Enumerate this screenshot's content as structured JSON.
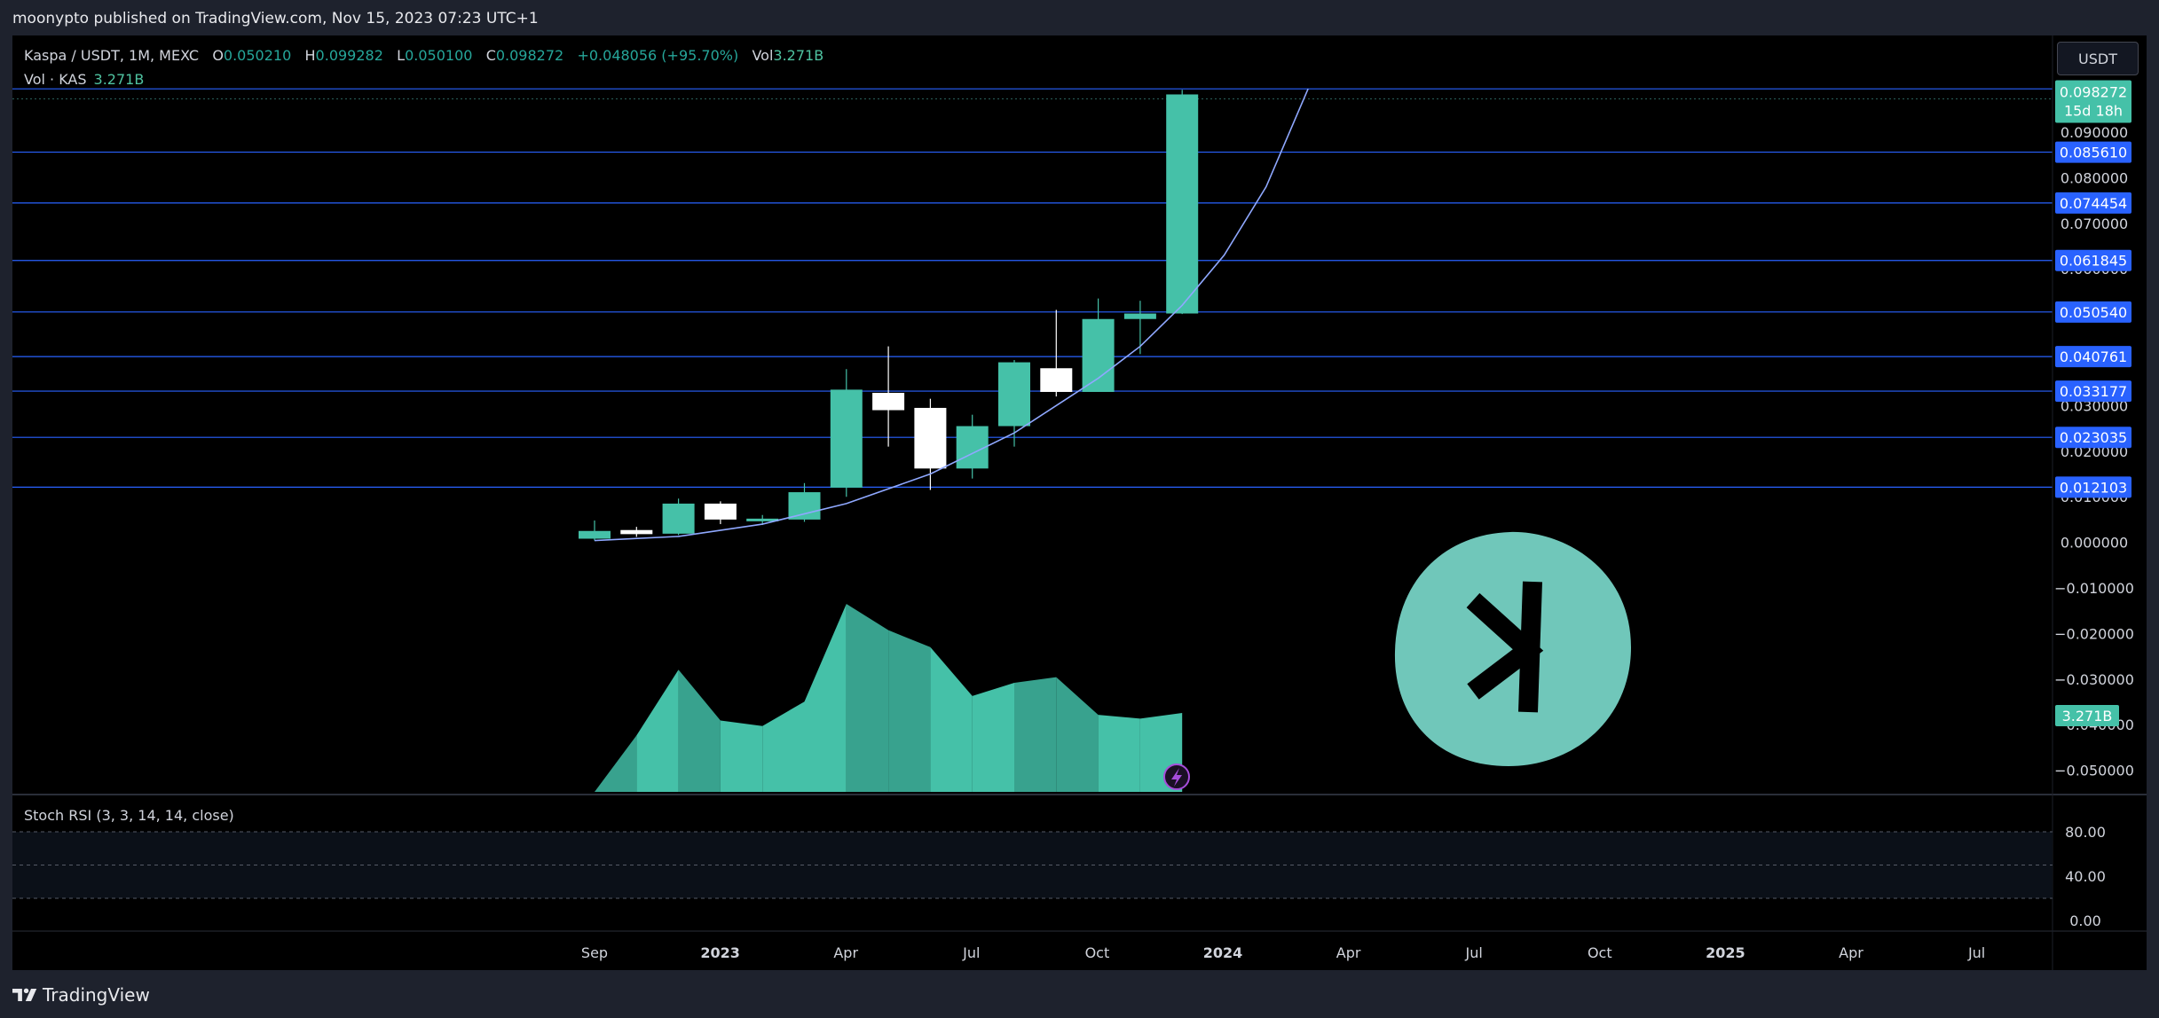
{
  "header": {
    "published_by": "moonypto published on TradingView.com, Nov 15, 2023 07:23 UTC+1"
  },
  "legend": {
    "symbol": "Kaspa / USDT, 1M, MEXC",
    "o_label": "O",
    "o_value": "0.050210",
    "h_label": "H",
    "h_value": "0.099282",
    "l_label": "L",
    "l_value": "0.050100",
    "c_label": "C",
    "c_value": "0.098272",
    "change": "+0.048056 (+95.70%)",
    "vol_label": "Vol",
    "vol_value": "3.271B"
  },
  "vol_legend": {
    "label": "Vol · KAS",
    "value": "3.271B"
  },
  "stoch_legend": {
    "label": "Stoch RSI (3, 3, 14, 14, close)"
  },
  "currency_button": {
    "label": "USDT"
  },
  "footer": {
    "brand": "TradingView"
  },
  "colors": {
    "up": "#45c1a8",
    "down": "#ffffff",
    "level": "#2962ff",
    "badge": "#2962ff",
    "price_badge": "#45c1a8",
    "volume": "#45c1a8",
    "volume_dark": "#38a28e",
    "logo": "#70c7ba"
  },
  "icons": {
    "logo": "kaspa-logo",
    "flash": "lightning-icon",
    "brand": "tradingview-logo-icon"
  },
  "chart_data": {
    "type": "candlestick",
    "title": "Kaspa / USDT, 1M, MEXC",
    "y_axis": {
      "ticks": [
        "0.090000",
        "0.080000",
        "0.070000",
        "0.060000",
        "0.050000",
        "0.040000",
        "0.030000",
        "0.020000",
        "0.010000",
        "0.000000",
        "−0.010000",
        "−0.020000",
        "−0.030000",
        "−0.040000",
        "−0.050000"
      ],
      "range": [
        -0.05,
        0.1
      ]
    },
    "x_axis": {
      "ticks": [
        "Sep",
        "2023",
        "Apr",
        "Jul",
        "Oct",
        "2024",
        "Apr",
        "Jul",
        "Oct",
        "2025",
        "Apr",
        "Jul"
      ]
    },
    "candles": [
      {
        "month": "2022-09",
        "o": 0.0008,
        "h": 0.0048,
        "l": 0.0004,
        "c": 0.0025
      },
      {
        "month": "2022-10",
        "o": 0.0027,
        "h": 0.0034,
        "l": 0.0012,
        "c": 0.0018
      },
      {
        "month": "2022-11",
        "o": 0.0019,
        "h": 0.0096,
        "l": 0.0016,
        "c": 0.0085
      },
      {
        "month": "2022-12",
        "o": 0.0085,
        "h": 0.009,
        "l": 0.004,
        "c": 0.005
      },
      {
        "month": "2023-01",
        "o": 0.005,
        "h": 0.006,
        "l": 0.0038,
        "c": 0.0052
      },
      {
        "month": "2023-02",
        "o": 0.005,
        "h": 0.013,
        "l": 0.0045,
        "c": 0.011
      },
      {
        "month": "2023-03",
        "o": 0.012,
        "h": 0.038,
        "l": 0.01,
        "c": 0.0335
      },
      {
        "month": "2023-04",
        "o": 0.0328,
        "h": 0.043,
        "l": 0.021,
        "c": 0.029
      },
      {
        "month": "2023-05",
        "o": 0.0295,
        "h": 0.0315,
        "l": 0.0115,
        "c": 0.0162
      },
      {
        "month": "2023-06",
        "o": 0.0162,
        "h": 0.028,
        "l": 0.014,
        "c": 0.0255
      },
      {
        "month": "2023-07",
        "o": 0.0255,
        "h": 0.04,
        "l": 0.021,
        "c": 0.0395
      },
      {
        "month": "2023-08",
        "o": 0.0382,
        "h": 0.051,
        "l": 0.032,
        "c": 0.033
      },
      {
        "month": "2023-09",
        "o": 0.033,
        "h": 0.0535,
        "l": 0.033,
        "c": 0.049
      },
      {
        "month": "2023-10",
        "o": 0.049,
        "h": 0.053,
        "l": 0.0413,
        "c": 0.0502
      },
      {
        "month": "2023-11",
        "o": 0.05021,
        "h": 0.099282,
        "l": 0.0501,
        "c": 0.098272
      }
    ],
    "levels": [
      "0.085610",
      "0.074454",
      "0.061845",
      "0.050540",
      "0.040761",
      "0.033177",
      "0.023035",
      "0.012103"
    ],
    "top_level": 0.0995,
    "last_price": {
      "value": "0.098272",
      "countdown": "15d 18h"
    },
    "curve": [
      [
        0,
        0.0004
      ],
      [
        2,
        0.0013
      ],
      [
        4,
        0.004
      ],
      [
        6,
        0.0085
      ],
      [
        8,
        0.015
      ],
      [
        10,
        0.024
      ],
      [
        12,
        0.036
      ],
      [
        13,
        0.043
      ],
      [
        14,
        0.052
      ],
      [
        15,
        0.063
      ],
      [
        16,
        0.078
      ],
      [
        17,
        0.0995
      ]
    ],
    "volume": {
      "last_label": "3.271B",
      "relative": [
        0.0,
        0.3,
        0.65,
        0.38,
        0.35,
        0.48,
        1.0,
        0.86,
        0.77,
        0.51,
        0.58,
        0.61,
        0.41,
        0.39,
        0.42
      ],
      "darker_indices": [
        0,
        2,
        6,
        7,
        10,
        11
      ]
    },
    "stoch_rsi": {
      "title": "Stoch RSI (3, 3, 14, 14, close)",
      "ticks": [
        "80.00",
        "40.00",
        "0.00"
      ],
      "range": [
        0,
        100
      ]
    }
  }
}
